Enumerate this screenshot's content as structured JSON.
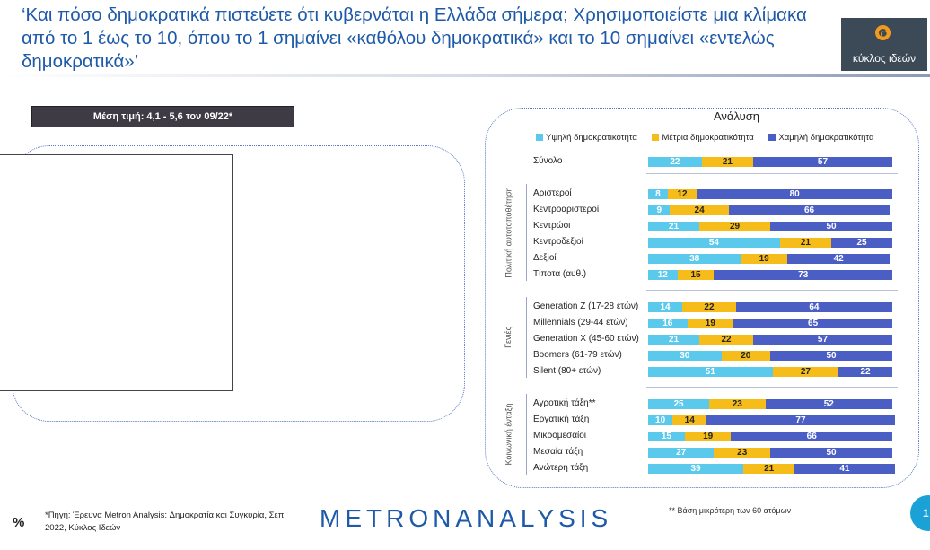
{
  "title": "‘Και πόσο δημοκρατικά πιστεύετε ότι κυβερνάται η Ελλάδα σήμερα; Χρησιμοποιείστε μια κλίμακα από το 1 έως το 10, όπου το 1 σημαίνει «καθόλου δημοκρατικά» και το 10 σημαίνει «εντελώς δημοκρατικά»’",
  "logo": {
    "text": "κύκλος ιδεών"
  },
  "mean_label": "Μέση τιμή: 4,1 - 5,6 τον 09/22*",
  "footnote": "*Πηγή: Έρευνα Metron Analysis: Δημοκρατία και Συγκυρία, Σεπ 2022, Κύκλος Ιδεών",
  "percent_sign": "%",
  "brand": "METRONANALYSIS",
  "small_base_note": "**  Βάση μικρότερη των 60 ατόμων",
  "page_number": "1",
  "colors": {
    "high": "#5bc9ec",
    "mid": "#f6bc1a",
    "low": "#4a5ec4",
    "accent": "#1e5aa8"
  },
  "chart_data": {
    "type": "bar",
    "orientation": "horizontal",
    "stacked": true,
    "title": "Ανάλυση",
    "series": [
      {
        "name": "Υψηλή δημοκρατικότητα",
        "values": [
          22,
          8,
          9,
          21,
          54,
          38,
          12,
          14,
          16,
          21,
          30,
          51,
          25,
          10,
          15,
          27,
          39
        ]
      },
      {
        "name": "Μέτρια δημοκρατικότητα",
        "values": [
          21,
          12,
          24,
          29,
          21,
          19,
          15,
          22,
          19,
          22,
          20,
          27,
          23,
          14,
          19,
          23,
          21
        ]
      },
      {
        "name": "Χαμηλή δημοκρατικότητα",
        "values": [
          57,
          80,
          66,
          50,
          25,
          42,
          73,
          64,
          65,
          57,
          50,
          22,
          52,
          77,
          66,
          50,
          41
        ]
      }
    ],
    "categories": [
      "Σύνολο",
      "Αριστεροί",
      "Κεντροαριστεροί",
      "Κεντρώοι",
      "Κεντροδεξιοί",
      "Δεξιοί",
      "Τίποτα (αυθ.)",
      "Generation Z  (17-28 ετών)",
      "Millennials (29-44 ετών)",
      "Generation X  (45-60 ετών)",
      "Boomers (61-79 ετών)",
      "Silent  (80+ ετών)",
      "Αγροτική τάξη**",
      "Εργατική τάξη",
      "Μικρομεσαίοι",
      "Μεσαία τάξη",
      "Ανώτερη τάξη"
    ],
    "groups": [
      {
        "label": "Πολιτική αυτοτοποθέτηση"
      },
      {
        "label": "Γενιές"
      },
      {
        "label": "Κοινωνική ένταξη"
      }
    ]
  }
}
